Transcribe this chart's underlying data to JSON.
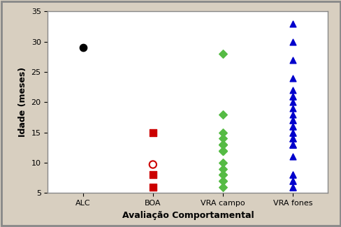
{
  "categories": [
    "ALC",
    "BOA",
    "VRA campo",
    "VRA fones"
  ],
  "alc_points": [
    29
  ],
  "boa_squares": [
    15,
    8,
    6
  ],
  "boa_circle": [
    9.7
  ],
  "vra_campo_points": [
    28,
    18,
    15,
    14,
    13,
    13,
    13,
    12,
    12,
    12,
    10,
    9,
    8,
    8,
    7,
    7,
    6
  ],
  "vra_fones_points": [
    33,
    30,
    27,
    24,
    22,
    21,
    21,
    20,
    19,
    18,
    17,
    17,
    16,
    16,
    15,
    15,
    14,
    14,
    14,
    13,
    13,
    13,
    13,
    11,
    8,
    8,
    7,
    7,
    6,
    6
  ],
  "ylim": [
    5,
    35
  ],
  "yticks": [
    5,
    10,
    15,
    20,
    25,
    30,
    35
  ],
  "xlabel": "Avaliação Comportamental",
  "ylabel": "Idade (meses)",
  "alc_color": "#000000",
  "boa_color": "#cc0000",
  "vra_campo_color": "#55bb44",
  "vra_fones_color": "#0000cc",
  "bg_color": "#d8cfc0",
  "plot_bg_color": "#ffffff",
  "border_color": "#888888",
  "tick_fontsize": 8,
  "label_fontsize": 9
}
